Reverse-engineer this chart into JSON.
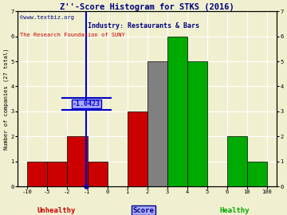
{
  "title": "Z''-Score Histogram for STKS (2016)",
  "subtitle": "Industry: Restaurants & Bars",
  "watermark1": "©www.textbiz.org",
  "watermark2": "The Research Foundation of SUNY",
  "xlabel_left": "Unhealthy",
  "xlabel_center": "Score",
  "xlabel_right": "Healthy",
  "ylabel": "Number of companies (27 total)",
  "marker_value": -1.0423,
  "marker_label": "-1.0423",
  "bin_edges": [
    -10,
    -5,
    -2,
    -1,
    0,
    1,
    2,
    3,
    4,
    5,
    6,
    10,
    100
  ],
  "bin_heights": [
    1,
    1,
    2,
    1,
    0,
    3,
    5,
    6,
    5,
    0,
    2,
    1
  ],
  "bin_colors": [
    "#cc0000",
    "#cc0000",
    "#cc0000",
    "#cc0000",
    "#cc0000",
    "#cc0000",
    "#808080",
    "#00aa00",
    "#00aa00",
    "#00aa00",
    "#00aa00",
    "#00aa00"
  ],
  "bar_edge_color": "#000000",
  "ylim": [
    0,
    7
  ],
  "yticks": [
    0,
    1,
    2,
    3,
    4,
    5,
    6,
    7
  ],
  "xtick_labels": [
    "-10",
    "-5",
    "-2",
    "-1",
    "0",
    "1",
    "2",
    "3",
    "4",
    "5",
    "6",
    "10",
    "100"
  ],
  "bg_color": "#f0f0d0",
  "grid_color": "#ffffff",
  "title_color": "#000080",
  "subtitle_color": "#000080",
  "watermark1_color": "#000080",
  "watermark2_color": "#cc0000",
  "unhealthy_color": "#cc0000",
  "healthy_color": "#00aa00",
  "score_color": "#000080",
  "marker_line_color": "#0000cc",
  "marker_text_color": "#0000cc",
  "marker_text_bg": "#aaaaff"
}
